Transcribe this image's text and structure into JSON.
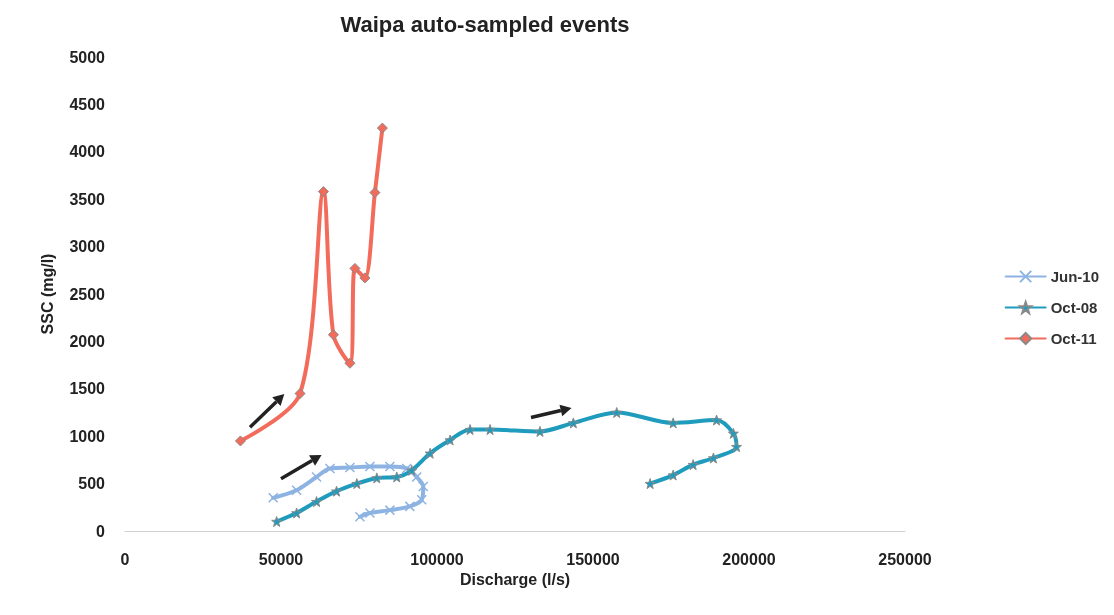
{
  "chart_data": {
    "type": "line",
    "title": "Waipa auto-sampled events",
    "xlabel": "Discharge (l/s)",
    "ylabel": "SSC (mg/l)",
    "xlim": [
      0,
      250000
    ],
    "xticks": [
      0,
      50000,
      100000,
      150000,
      200000,
      250000
    ],
    "ylim": [
      0,
      5000
    ],
    "yticks": [
      0,
      500,
      1000,
      1500,
      2000,
      2500,
      3000,
      3500,
      4000,
      4500,
      5000
    ],
    "grid": false,
    "legend": "right",
    "series": [
      {
        "name": "Jun-10",
        "color": "#8db3e2",
        "marker": "cross",
        "x": [
          47500,
          55000,
          61400,
          65700,
          72100,
          78500,
          84900,
          90300,
          93500,
          95600,
          95100,
          91300,
          84900,
          78500,
          75300
        ],
        "values": [
          350,
          430,
          570,
          660,
          670,
          680,
          680,
          660,
          570,
          470,
          330,
          260,
          220,
          190,
          150
        ]
      },
      {
        "name": "Oct-08",
        "color": "#1f9bbd",
        "marker": "star",
        "x": [
          48600,
          55000,
          61400,
          67800,
          74300,
          80700,
          87100,
          91900,
          97800,
          104200,
          110600,
          117000,
          133000,
          143700,
          157600,
          175700,
          189600,
          195000,
          196000,
          188600,
          182100,
          175700,
          168300
        ],
        "values": [
          100,
          190,
          310,
          420,
          500,
          560,
          570,
          640,
          820,
          960,
          1070,
          1070,
          1050,
          1140,
          1250,
          1140,
          1170,
          1030,
          890,
          770,
          700,
          590,
          500
        ]
      },
      {
        "name": "Oct-11",
        "color": "#f26b5b",
        "marker": "diamond",
        "x": [
          37000,
          56100,
          63600,
          66800,
          72100,
          73700,
          76900,
          80100,
          82500
        ],
        "values": [
          950,
          1450,
          3580,
          2070,
          1770,
          2770,
          2670,
          3570,
          4250
        ]
      }
    ]
  }
}
